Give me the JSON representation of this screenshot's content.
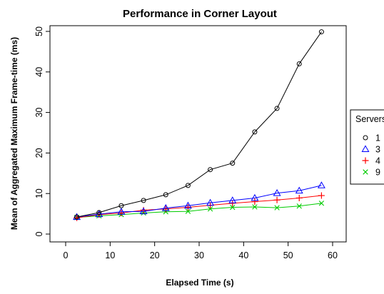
{
  "chart_data": {
    "type": "line",
    "title": "Performance in Corner Layout",
    "xlabel": "Elapsed Time (s)",
    "ylabel": "Mean of Aggregated Maximum Frame-time (ms)",
    "xlim": [
      0,
      60
    ],
    "ylim": [
      0,
      50
    ],
    "xticks": [
      0,
      10,
      20,
      30,
      40,
      50,
      60
    ],
    "yticks": [
      0,
      10,
      20,
      30,
      40,
      50
    ],
    "grid": false,
    "legend": {
      "title": "Servers",
      "placement": "right"
    },
    "x": [
      2.5,
      7.5,
      12.5,
      17.5,
      22.5,
      27.5,
      32.5,
      37.5,
      42.5,
      47.5,
      52.5,
      57.5
    ],
    "series": [
      {
        "name": "1",
        "color": "#000000",
        "marker": "circle",
        "values": [
          4.2,
          5.3,
          7.0,
          8.3,
          9.7,
          12.0,
          15.9,
          17.5,
          25.2,
          31.0,
          42.0,
          49.9
        ]
      },
      {
        "name": "3",
        "color": "#0000ff",
        "marker": "triangle",
        "values": [
          4.2,
          4.9,
          5.5,
          5.6,
          6.4,
          7.0,
          7.7,
          8.3,
          8.9,
          10.1,
          10.7,
          12.0
        ]
      },
      {
        "name": "4",
        "color": "#ff0000",
        "marker": "plus",
        "values": [
          4.0,
          4.8,
          5.2,
          5.9,
          6.2,
          6.6,
          7.1,
          7.6,
          8.0,
          8.4,
          8.9,
          9.5
        ]
      },
      {
        "name": "9",
        "color": "#00cc00",
        "marker": "cross",
        "values": [
          4.1,
          4.5,
          4.8,
          5.2,
          5.5,
          5.6,
          6.2,
          6.6,
          6.7,
          6.5,
          6.9,
          7.6
        ]
      }
    ]
  }
}
